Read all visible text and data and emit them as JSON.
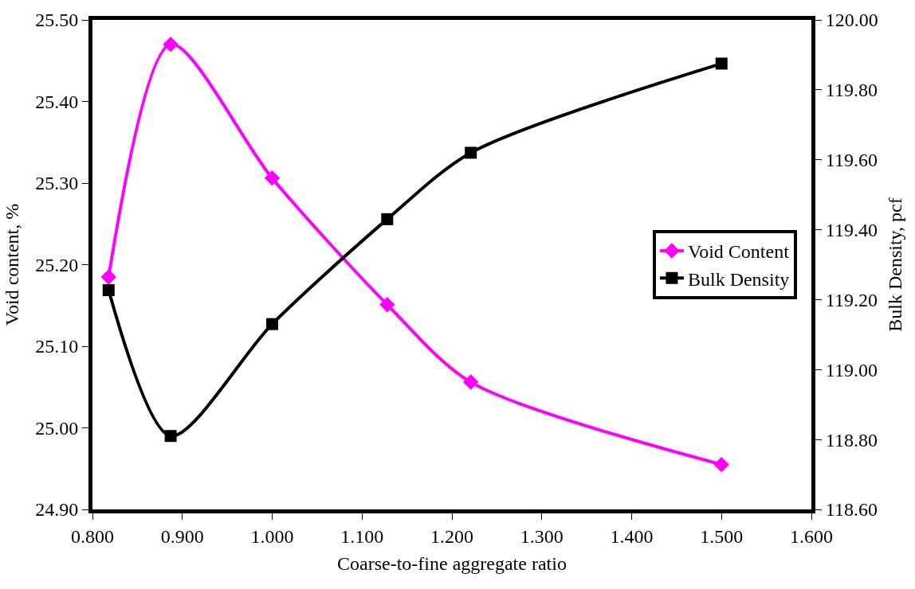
{
  "chart_data": {
    "type": "line",
    "xlabel": "Coarse-to-fine aggregate ratio",
    "ylabel": "Void content, %",
    "y2label": "Bulk Density, pcf",
    "x": [
      0.818,
      0.887,
      1.0,
      1.128,
      1.221,
      1.5
    ],
    "series": [
      {
        "name": "Void Content",
        "color": "#ff00ff",
        "marker": "diamond",
        "values": [
          25.185,
          25.47,
          25.306,
          25.151,
          25.056,
          24.955
        ]
      },
      {
        "name": "Bulk Density",
        "color": "#000000",
        "marker": "square",
        "axis": "y2",
        "values": [
          119.227,
          118.81,
          119.13,
          119.43,
          119.62,
          119.875
        ]
      }
    ],
    "xlim": [
      0.8,
      1.6
    ],
    "xticks": [
      {
        "value": 0.8,
        "label": "0.800"
      },
      {
        "value": 0.9,
        "label": "0.900"
      },
      {
        "value": 1.0,
        "label": "1.000"
      },
      {
        "value": 1.1,
        "label": "1.100"
      },
      {
        "value": 1.2,
        "label": "1.200"
      },
      {
        "value": 1.3,
        "label": "1.300"
      },
      {
        "value": 1.4,
        "label": "1.400"
      },
      {
        "value": 1.5,
        "label": "1.500"
      },
      {
        "value": 1.6,
        "label": "1.600"
      }
    ],
    "ylim": [
      24.9,
      25.5
    ],
    "yticks": [
      {
        "value": 24.9,
        "label": "24.90"
      },
      {
        "value": 25.0,
        "label": "25.00"
      },
      {
        "value": 25.1,
        "label": "25.10"
      },
      {
        "value": 25.2,
        "label": "25.20"
      },
      {
        "value": 25.3,
        "label": "25.30"
      },
      {
        "value": 25.4,
        "label": "25.40"
      },
      {
        "value": 25.5,
        "label": "25.50"
      }
    ],
    "y2lim": [
      118.6,
      120.0
    ],
    "y2ticks": [
      {
        "value": 118.6,
        "label": "118.60"
      },
      {
        "value": 118.8,
        "label": "118.80"
      },
      {
        "value": 119.0,
        "label": "119.00"
      },
      {
        "value": 119.2,
        "label": "119.20"
      },
      {
        "value": 119.4,
        "label": "119.40"
      },
      {
        "value": 119.6,
        "label": "119.60"
      },
      {
        "value": 119.8,
        "label": "119.80"
      },
      {
        "value": 120.0,
        "label": "120.00"
      }
    ],
    "legend": "right",
    "line_style": "solid"
  }
}
